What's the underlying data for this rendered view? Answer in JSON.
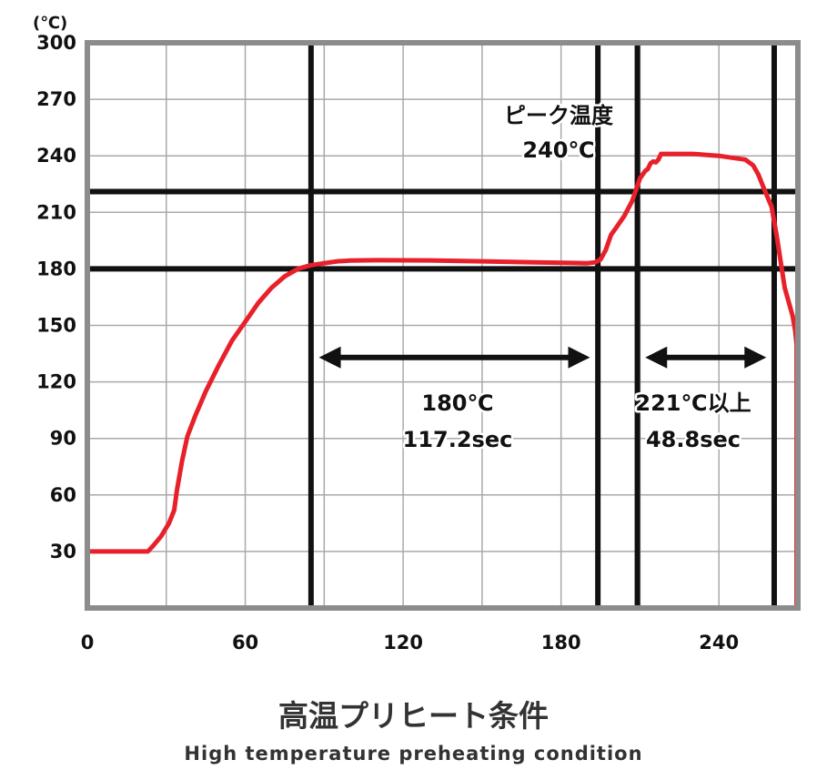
{
  "chart_data": {
    "type": "line",
    "unit_label": "(℃)",
    "title": "高温プリヒート条件",
    "subtitle": "High temperature preheating condition",
    "xlim": [
      0,
      270
    ],
    "ylim": [
      0,
      300
    ],
    "x_ticks": [
      "0",
      "60",
      "120",
      "180",
      "240"
    ],
    "y_ticks": [
      "30",
      "60",
      "90",
      "120",
      "150",
      "180",
      "210",
      "240",
      "270",
      "300"
    ],
    "grid": true,
    "series": [
      {
        "color": "#e8202a",
        "x": [
          0,
          23,
          25,
          28,
          31,
          33,
          34,
          36,
          38,
          41,
          45,
          50,
          55,
          60,
          65,
          70,
          75,
          80,
          85,
          90,
          95,
          100,
          110,
          130,
          150,
          170,
          190,
          193,
          195,
          197,
          199,
          201,
          204,
          207,
          210,
          212,
          213,
          214,
          215,
          216,
          217,
          218,
          222,
          230,
          240,
          245,
          250,
          253,
          255,
          257,
          260,
          262,
          265,
          268,
          269,
          269.5,
          269.5
        ],
        "y": [
          30,
          30,
          33,
          38,
          45,
          52,
          62,
          78,
          91,
          102,
          115,
          129,
          142,
          152,
          162,
          170,
          176,
          180,
          182,
          183,
          184,
          184.4,
          184.6,
          184.5,
          184,
          183.5,
          183,
          183.5,
          185,
          190,
          198,
          202,
          208,
          216,
          228,
          232,
          233,
          236,
          237,
          236.5,
          238,
          241,
          241,
          241,
          240,
          239,
          238,
          235,
          230,
          223,
          213,
          197,
          170,
          155,
          147,
          140,
          0
        ]
      }
    ],
    "reference_lines": {
      "vertical_x": [
        85,
        194,
        209,
        261
      ],
      "horizontal_y": [
        180,
        221
      ]
    },
    "annotations": [
      {
        "line1": "ピーク温度",
        "line2": "240℃"
      },
      {
        "line1": "180℃",
        "line2": "117.2sec"
      },
      {
        "line1": "221℃以上",
        "line2": "48.8sec"
      }
    ],
    "arrows": [
      {
        "x_from": 88,
        "x_to": 191,
        "y": 133
      },
      {
        "x_from": 212,
        "x_to": 258,
        "y": 133
      }
    ]
  }
}
